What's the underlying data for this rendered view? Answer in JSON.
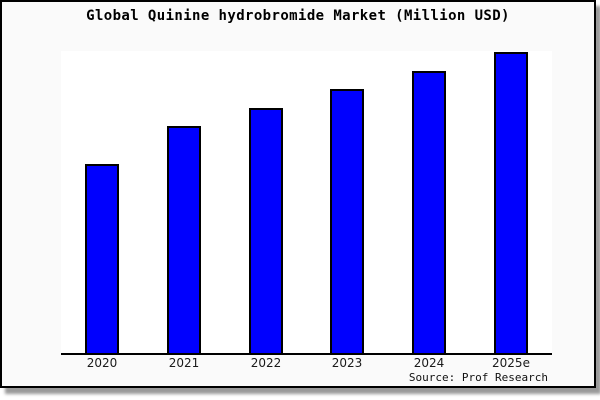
{
  "title": "Global Quinine hydrobromide Market (Million USD)",
  "source": "Source: Prof Research",
  "colors": {
    "bar_fill": "#0000fe",
    "bar_border": "#000000",
    "panel_bg": "#fafafa",
    "plot_bg": "#ffffff",
    "axis": "#000000",
    "shadow": "#9a9a9a"
  },
  "chart_data": {
    "type": "bar",
    "title": "Global Quinine hydrobromide Market (Million USD)",
    "categories": [
      "2020",
      "2021",
      "2022",
      "2023",
      "2024",
      "2025e"
    ],
    "values": [
      62.8,
      75.4,
      81.4,
      87.7,
      93.7,
      100
    ],
    "value_scale_note": "no y-axis ticks shown; values estimated as percent of 2025e bar height",
    "xlabel": "",
    "ylabel": "",
    "ylim": [
      0,
      100.4
    ],
    "grid": false,
    "legend": null,
    "source": "Source: Prof Research"
  }
}
